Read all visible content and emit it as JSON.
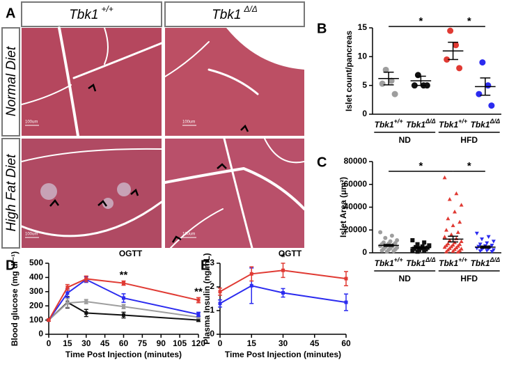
{
  "figure": {
    "panel_a": {
      "label": "A",
      "columns": [
        {
          "gene": "Tbk1",
          "genotype": "+/+"
        },
        {
          "gene": "Tbk1",
          "genotype": "Δ/Δ"
        }
      ],
      "rows": [
        "Normal Diet",
        "High Fat Diet"
      ],
      "images": [
        {
          "scale": "100um"
        },
        {
          "scale": "100um"
        },
        {
          "scale": "100um"
        },
        {
          "scale": "100um"
        }
      ]
    }
  },
  "chart_data": [
    {
      "label": "B",
      "type": "strip",
      "ylabel": "Islet count/pancreas",
      "ylim": [
        0,
        15
      ],
      "yticks": [
        0,
        5,
        10,
        15
      ],
      "categories": [
        {
          "gene": "Tbk1",
          "genotype": "+/+"
        },
        {
          "gene": "Tbk1",
          "genotype": "Δ/Δ"
        },
        {
          "gene": "Tbk1",
          "genotype": "+/+"
        },
        {
          "gene": "Tbk1",
          "genotype": "Δ/Δ"
        }
      ],
      "groups": [
        "ND",
        "HFD"
      ],
      "series": [
        {
          "color": "#9e9e9e",
          "marker": "circle",
          "values": [
            7.7,
            5.8,
            5.3,
            3.5
          ],
          "mean": 6.2,
          "sem": 1.1
        },
        {
          "color": "#111111",
          "marker": "circle",
          "values": [
            6.8,
            5.0,
            5.0,
            5.0
          ],
          "mean": 5.8,
          "sem": 0.8
        },
        {
          "color": "#e03a33",
          "marker": "circle",
          "values": [
            14.5,
            12,
            9.5,
            8
          ],
          "mean": 11,
          "sem": 1.5
        },
        {
          "color": "#2b2bef",
          "marker": "circle",
          "values": [
            9,
            5,
            3.5,
            1.5
          ],
          "mean": 4.8,
          "sem": 1.5
        }
      ],
      "annotations": [
        {
          "text": "*",
          "from": 0,
          "to": 2
        },
        {
          "text": "*",
          "from": 2,
          "to": 3
        }
      ]
    },
    {
      "label": "C",
      "type": "strip",
      "ylabel": "Islet Area (μm²)",
      "ylim": [
        0,
        80000
      ],
      "yticks": [
        0,
        20000,
        40000,
        60000,
        80000
      ],
      "categories": [
        {
          "gene": "Tbk1",
          "genotype": "+/+"
        },
        {
          "gene": "Tbk1",
          "genotype": "Δ/Δ"
        },
        {
          "gene": "Tbk1",
          "genotype": "+/+"
        },
        {
          "gene": "Tbk1",
          "genotype": "Δ/Δ"
        }
      ],
      "groups": [
        "ND",
        "HFD"
      ],
      "series": [
        {
          "color": "#9e9e9e",
          "marker": "circle",
          "values": [
            18000,
            15000,
            13000,
            11000,
            10000,
            9000,
            8500,
            8000,
            7500,
            7000,
            6500,
            6000,
            5500,
            5000,
            4500,
            4000,
            3500,
            3000,
            2500,
            2000,
            1500,
            1000
          ],
          "mean": 6500,
          "sem": 800
        },
        {
          "color": "#111111",
          "marker": "square",
          "values": [
            11000,
            9000,
            7500,
            6500,
            5500,
            5000,
            4500,
            4000,
            3500,
            3000,
            2500,
            2000,
            1500,
            1000
          ],
          "mean": 4500,
          "sem": 700
        },
        {
          "color": "#e03a33",
          "marker": "triangle-up",
          "values": [
            66000,
            52000,
            47000,
            42000,
            36000,
            30000,
            27000,
            24000,
            20000,
            18000,
            16000,
            14000,
            12500,
            11000,
            10000,
            9000,
            8000,
            7500,
            7000,
            6500,
            6000,
            5500,
            5000,
            4500,
            4000,
            3500,
            3000,
            2500,
            2000,
            1500,
            1000,
            800
          ],
          "mean": 12000,
          "sem": 2500
        },
        {
          "color": "#2b2bef",
          "marker": "triangle-down",
          "values": [
            17000,
            14000,
            12000,
            10000,
            8500,
            7500,
            6500,
            6000,
            5500,
            5000,
            4500,
            4000,
            3500,
            3000,
            2500,
            2000,
            1500,
            1000
          ],
          "mean": 5000,
          "sem": 900
        }
      ],
      "annotations": [
        {
          "text": "*",
          "from": 0,
          "to": 2
        },
        {
          "text": "*",
          "from": 2,
          "to": 3
        }
      ]
    },
    {
      "label": "D",
      "type": "line",
      "title": "OGTT",
      "ylabel": "Blood glucose (mg dl⁻¹)",
      "xlabel": "Time Post Injection (minutes)",
      "x": [
        0,
        15,
        30,
        60,
        120
      ],
      "xlim": [
        0,
        120
      ],
      "xticks": [
        0,
        15,
        30,
        45,
        60,
        75,
        90,
        105,
        120
      ],
      "ylim": [
        0,
        500
      ],
      "yticks": [
        0,
        100,
        200,
        300,
        400,
        500
      ],
      "series": [
        {
          "color": "#111111",
          "values": [
            100,
            225,
            150,
            135,
            100
          ],
          "errors": [
            8,
            40,
            25,
            20,
            10
          ]
        },
        {
          "color": "#9e9e9e",
          "values": [
            100,
            220,
            230,
            195,
            120
          ],
          "errors": [
            8,
            30,
            15,
            15,
            10
          ]
        },
        {
          "color": "#2b2bef",
          "values": [
            100,
            290,
            385,
            255,
            140
          ],
          "errors": [
            8,
            30,
            20,
            30,
            15
          ]
        },
        {
          "color": "#e03a33",
          "values": [
            100,
            330,
            390,
            360,
            240
          ],
          "errors": [
            8,
            20,
            20,
            15,
            18
          ]
        }
      ],
      "annotations": [
        {
          "text": "**",
          "x": 60
        },
        {
          "text": "**",
          "x": 120
        }
      ]
    },
    {
      "label": "E",
      "type": "line",
      "title": "OGTT",
      "ylabel": "Plasma Insulin (ng/mL)",
      "xlabel": "Time Post Injection (minutes)",
      "x": [
        0,
        15,
        30,
        60
      ],
      "xlim": [
        0,
        60
      ],
      "xticks": [
        0,
        15,
        30,
        45,
        60
      ],
      "ylim": [
        0,
        3
      ],
      "yticks": [
        0,
        1,
        2,
        3
      ],
      "series": [
        {
          "color": "#2b2bef",
          "values": [
            1.3,
            2.05,
            1.75,
            1.35
          ],
          "errors": [
            0.15,
            0.75,
            0.18,
            0.35
          ]
        },
        {
          "color": "#e03a33",
          "values": [
            1.8,
            2.55,
            2.7,
            2.35
          ],
          "errors": [
            0.15,
            0.3,
            0.3,
            0.3
          ]
        }
      ],
      "annotations": [
        {
          "text": "*",
          "x": 30
        }
      ]
    }
  ]
}
